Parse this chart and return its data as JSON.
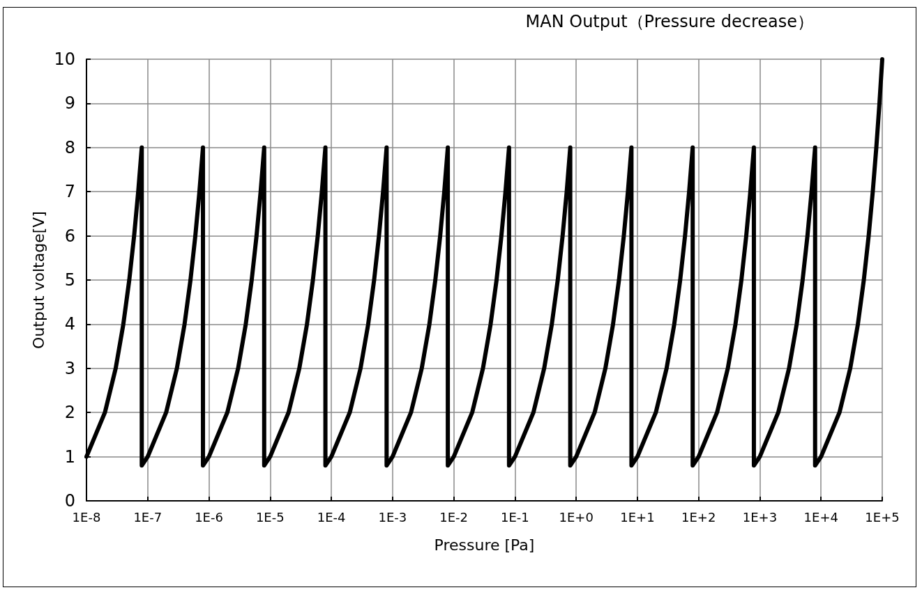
{
  "chart_data": {
    "type": "line",
    "title": "MAN Output（Pressure decrease）",
    "xlabel": "Pressure [Pa]",
    "ylabel": "Output voltage[V]",
    "x": [
      1e-08,
      2e-08,
      3e-08,
      4e-08,
      5e-08,
      6e-08,
      7e-08,
      8e-08,
      8e-08,
      1e-07,
      2e-07,
      3e-07,
      4e-07,
      5e-07,
      6e-07,
      7e-07,
      8e-07,
      8e-07,
      1e-06,
      2e-06,
      3e-06,
      4e-06,
      5e-06,
      6e-06,
      7e-06,
      8e-06,
      8e-06,
      1e-05,
      2e-05,
      3e-05,
      4e-05,
      5e-05,
      6e-05,
      7e-05,
      8e-05,
      8e-05,
      0.0001,
      0.0002,
      0.0003,
      0.0004,
      0.0005,
      0.0006,
      0.0007,
      0.0008,
      0.0008,
      0.001,
      0.002,
      0.003,
      0.004,
      0.005,
      0.006,
      0.007,
      0.008,
      0.008,
      0.01,
      0.02,
      0.03,
      0.04,
      0.05,
      0.06,
      0.07,
      0.08,
      0.08,
      0.1,
      0.2,
      0.3,
      0.4,
      0.5,
      0.6,
      0.7,
      0.8,
      0.8,
      1,
      2,
      3,
      4,
      5,
      6,
      7,
      8,
      8,
      10,
      20,
      30,
      40,
      50,
      60,
      70,
      80,
      80,
      100,
      200,
      300,
      400,
      500,
      600,
      700,
      800,
      800,
      1000,
      2000,
      3000,
      4000,
      5000,
      6000,
      7000,
      8000,
      8000,
      10000,
      20000,
      30000,
      40000,
      50000,
      60000,
      70000,
      80000,
      90000,
      100000
    ],
    "series": [
      {
        "color": "#000000",
        "values": [
          1,
          2,
          3,
          4,
          5,
          6,
          7,
          8,
          0.8,
          1,
          2,
          3,
          4,
          5,
          6,
          7,
          8,
          0.8,
          1,
          2,
          3,
          4,
          5,
          6,
          7,
          8,
          0.8,
          1,
          2,
          3,
          4,
          5,
          6,
          7,
          8,
          0.8,
          1,
          2,
          3,
          4,
          5,
          6,
          7,
          8,
          0.8,
          1,
          2,
          3,
          4,
          5,
          6,
          7,
          8,
          0.8,
          1,
          2,
          3,
          4,
          5,
          6,
          7,
          8,
          0.8,
          1,
          2,
          3,
          4,
          5,
          6,
          7,
          8,
          0.8,
          1,
          2,
          3,
          4,
          5,
          6,
          7,
          8,
          0.8,
          1,
          2,
          3,
          4,
          5,
          6,
          7,
          8,
          0.8,
          1,
          2,
          3,
          4,
          5,
          6,
          7,
          8,
          0.8,
          1,
          2,
          3,
          4,
          5,
          6,
          7,
          8,
          0.8,
          1,
          2,
          3,
          4,
          5,
          6,
          7,
          8,
          9,
          10
        ]
      }
    ],
    "log": "x",
    "xlim": [
      1e-08,
      100000
    ],
    "xticks": [
      {
        "value": 1e-08,
        "label": "1E-8"
      },
      {
        "value": 1e-07,
        "label": "1E-7"
      },
      {
        "value": 1e-06,
        "label": "1E-6"
      },
      {
        "value": 1e-05,
        "label": "1E-5"
      },
      {
        "value": 0.0001,
        "label": "1E-4"
      },
      {
        "value": 0.001,
        "label": "1E-3"
      },
      {
        "value": 0.01,
        "label": "1E-2"
      },
      {
        "value": 0.1,
        "label": "1E-1"
      },
      {
        "value": 1,
        "label": "1E+0"
      },
      {
        "value": 10,
        "label": "1E+1"
      },
      {
        "value": 100,
        "label": "1E+2"
      },
      {
        "value": 1000,
        "label": "1E+3"
      },
      {
        "value": 10000,
        "label": "1E+4"
      },
      {
        "value": 100000,
        "label": "1E+5"
      }
    ],
    "ylim": [
      0,
      10
    ],
    "yticks": [
      0,
      1,
      2,
      3,
      4,
      5,
      6,
      7,
      8,
      9,
      10
    ],
    "grid": true,
    "marker": "none",
    "line_style": "solid"
  }
}
